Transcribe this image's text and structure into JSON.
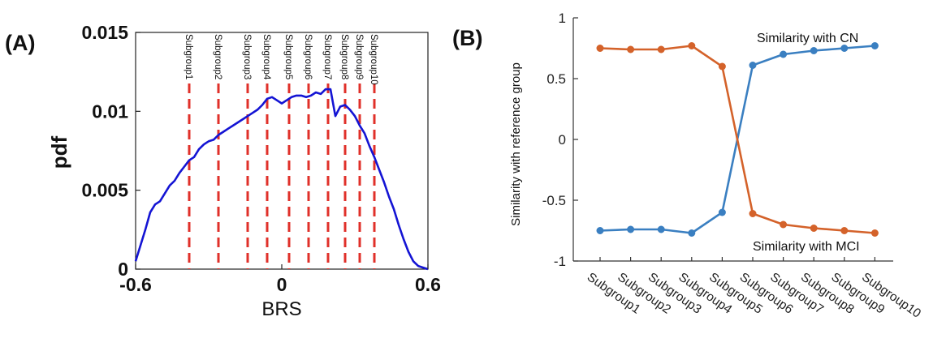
{
  "chart_data": [
    {
      "panel_label": "(A)",
      "type": "line",
      "xlabel": "BRS",
      "ylabel": "pdf",
      "xlim": [
        -0.6,
        0.6
      ],
      "ylim": [
        0,
        0.015
      ],
      "xtick_labels": [
        "-0.6",
        "0",
        "0.6"
      ],
      "ytick_labels": [
        "0",
        "0.005",
        "0.01",
        "0.015"
      ],
      "series": [
        {
          "name": "pdf",
          "color": "#1414d4",
          "x": [
            -0.6,
            -0.58,
            -0.56,
            -0.54,
            -0.52,
            -0.5,
            -0.48,
            -0.46,
            -0.44,
            -0.42,
            -0.4,
            -0.38,
            -0.36,
            -0.34,
            -0.32,
            -0.3,
            -0.28,
            -0.26,
            -0.24,
            -0.22,
            -0.2,
            -0.18,
            -0.16,
            -0.14,
            -0.12,
            -0.1,
            -0.08,
            -0.06,
            -0.04,
            -0.02,
            0.0,
            0.02,
            0.04,
            0.06,
            0.08,
            0.1,
            0.12,
            0.14,
            0.16,
            0.18,
            0.2,
            0.22,
            0.24,
            0.26,
            0.28,
            0.3,
            0.32,
            0.34,
            0.36,
            0.38,
            0.4,
            0.42,
            0.44,
            0.46,
            0.48,
            0.5,
            0.52,
            0.54,
            0.56,
            0.58,
            0.6
          ],
          "y": [
            0.0005,
            0.0015,
            0.0025,
            0.0036,
            0.0041,
            0.0043,
            0.0048,
            0.0053,
            0.0056,
            0.0061,
            0.0065,
            0.0069,
            0.0071,
            0.0076,
            0.0079,
            0.0081,
            0.0082,
            0.0085,
            0.0087,
            0.0089,
            0.0091,
            0.0093,
            0.0095,
            0.0097,
            0.0099,
            0.0101,
            0.0104,
            0.0108,
            0.0109,
            0.0107,
            0.0105,
            0.0107,
            0.0109,
            0.011,
            0.011,
            0.0109,
            0.011,
            0.0112,
            0.0111,
            0.0114,
            0.0114,
            0.0097,
            0.0103,
            0.0104,
            0.0101,
            0.0097,
            0.0091,
            0.0086,
            0.0078,
            0.0071,
            0.0063,
            0.0055,
            0.0046,
            0.0038,
            0.0028,
            0.0019,
            0.0011,
            0.0005,
            0.0002,
            0.0001,
            0.0
          ]
        }
      ],
      "vlines": {
        "color": "#e0302a",
        "style": "dashed",
        "x": [
          -0.38,
          -0.26,
          -0.14,
          -0.06,
          0.03,
          0.11,
          0.19,
          0.26,
          0.32,
          0.38
        ],
        "labels": [
          "Subgroup1",
          "Subgroup2",
          "Subgroup3",
          "Subgroup4",
          "Subgroup5",
          "Subgroup6",
          "Subgroup7",
          "Subgroup8",
          "Subgroup9",
          "Subgroup10"
        ]
      }
    },
    {
      "panel_label": "(B)",
      "type": "line",
      "xlabel": "",
      "ylabel": "Similarity  with reference group",
      "ylim": [
        -1,
        1
      ],
      "ytick_labels": [
        "1",
        "0.5",
        "0",
        "-0.5",
        "-1"
      ],
      "categories": [
        "Subgroup1",
        "Subgroup2",
        "Subgroup3",
        "Subgroup4",
        "Subgroup5",
        "Subgroup6",
        "Subgroup7",
        "Subgroup8",
        "Subgroup9",
        "Subgroup10"
      ],
      "series": [
        {
          "name": "Similarity with CN",
          "color": "#3a7fc1",
          "values": [
            -0.75,
            -0.74,
            -0.74,
            -0.77,
            -0.6,
            0.61,
            0.7,
            0.73,
            0.75,
            0.77
          ]
        },
        {
          "name": "Similarity with MCI",
          "color": "#d4622a",
          "values": [
            0.75,
            0.74,
            0.74,
            0.77,
            0.6,
            -0.61,
            -0.7,
            -0.73,
            -0.75,
            -0.77
          ]
        }
      ],
      "annotations": [
        "Similarity with CN",
        "Similarity with MCI"
      ]
    }
  ]
}
